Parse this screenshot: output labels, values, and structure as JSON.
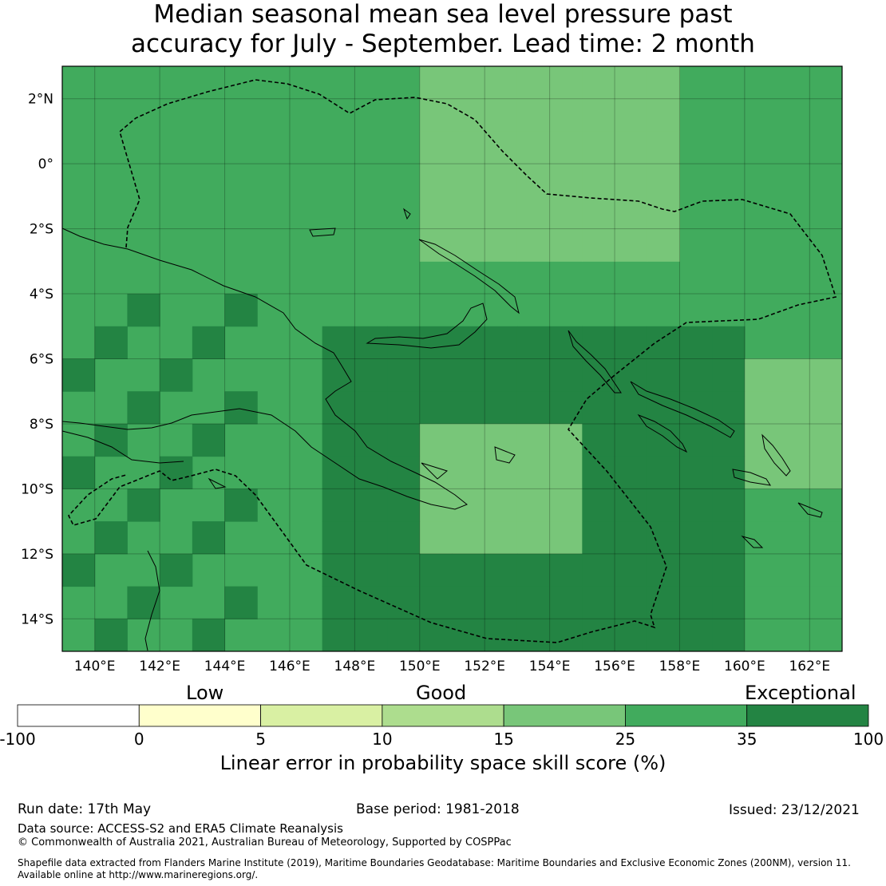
{
  "title": {
    "line1": "Median seasonal mean sea level pressure past",
    "line2": "accuracy for July - September. Lead time: 2 month"
  },
  "map": {
    "lon_labels": [
      "140°E",
      "142°E",
      "144°E",
      "146°E",
      "148°E",
      "150°E",
      "152°E",
      "154°E",
      "156°E",
      "158°E",
      "160°E",
      "162°E"
    ],
    "lat_labels": [
      "2°N",
      "0°",
      "2°S",
      "4°S",
      "6°S",
      "8°S",
      "10°S",
      "12°S",
      "14°S"
    ],
    "extent": {
      "lon_min": 139,
      "lon_max": 163,
      "lat_min": -15,
      "lat_max": 3
    }
  },
  "legend": {
    "categories": [
      "Low",
      "Good",
      "Exceptional"
    ],
    "ticks": [
      "-100",
      "0",
      "5",
      "10",
      "15",
      "25",
      "35",
      "100"
    ],
    "colors": [
      "#ffffff",
      "#ffffcc",
      "#d9f0a3",
      "#addd8e",
      "#78c679",
      "#41ab5d",
      "#238443"
    ],
    "title": "Linear error in probability space skill score (%)"
  },
  "footer": {
    "run_date": "Run date: 17th May",
    "base_period": "Base period: 1981-2018",
    "issued": "Issued: 23/12/2021",
    "data_source": "Data source: ACCESS-S2 and ERA5 Climate Reanalysis",
    "copyright": "© Commonwealth of Australia 2021, Australian Bureau of Meteorology, Supported by COSPPac",
    "shapefile_line1": "Shapefile data extracted from Flanders Marine Institute (2019), Maritime Boundaries Geodatabase: Maritime Boundaries and Exclusive Economic Zones (200NM), version 11.",
    "shapefile_line2": "Available online at http://www.marineregions.org/."
  }
}
